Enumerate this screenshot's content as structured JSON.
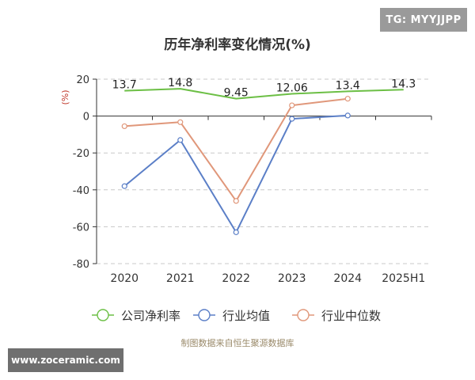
{
  "badges": {
    "top_right": "TG: MYYJJPP",
    "bottom_left": "www.zoceramic.com"
  },
  "source_note": "制图数据来自恒生聚源数据库",
  "colors": {
    "company": "#6cbf45",
    "industry_avg": "#5b7fc7",
    "industry_median": "#e0977a",
    "grid": "#c8c8c8",
    "axis": "#333333",
    "unit": "#c0392b"
  },
  "chart_data": {
    "type": "line",
    "title": "历年净利率变化情况(%)",
    "ylabel": "(%)",
    "xlabel": "",
    "categories": [
      "2020",
      "2021",
      "2022",
      "2023",
      "2024",
      "2025H1"
    ],
    "ylim": [
      -80,
      20
    ],
    "yticks": [
      20,
      0,
      -20,
      -40,
      -60,
      -80
    ],
    "grid": "horizontal dashed",
    "legend_position": "bottom",
    "series": [
      {
        "name": "公司净利率",
        "color": "#6cbf45",
        "values": [
          13.7,
          14.8,
          9.45,
          12.06,
          13.4,
          14.3
        ],
        "labels": [
          "13.7",
          "14.8",
          "9.45",
          "12.06",
          "13.4",
          "14.3"
        ],
        "show_markers": false
      },
      {
        "name": "行业均值",
        "color": "#5b7fc7",
        "values": [
          -38,
          -13,
          -63,
          -1.5,
          0.3,
          null
        ],
        "show_markers": true
      },
      {
        "name": "行业中位数",
        "color": "#e0977a",
        "values": [
          -5.5,
          -3.3,
          -46,
          5.8,
          9.4,
          null
        ],
        "show_markers": true
      }
    ]
  }
}
